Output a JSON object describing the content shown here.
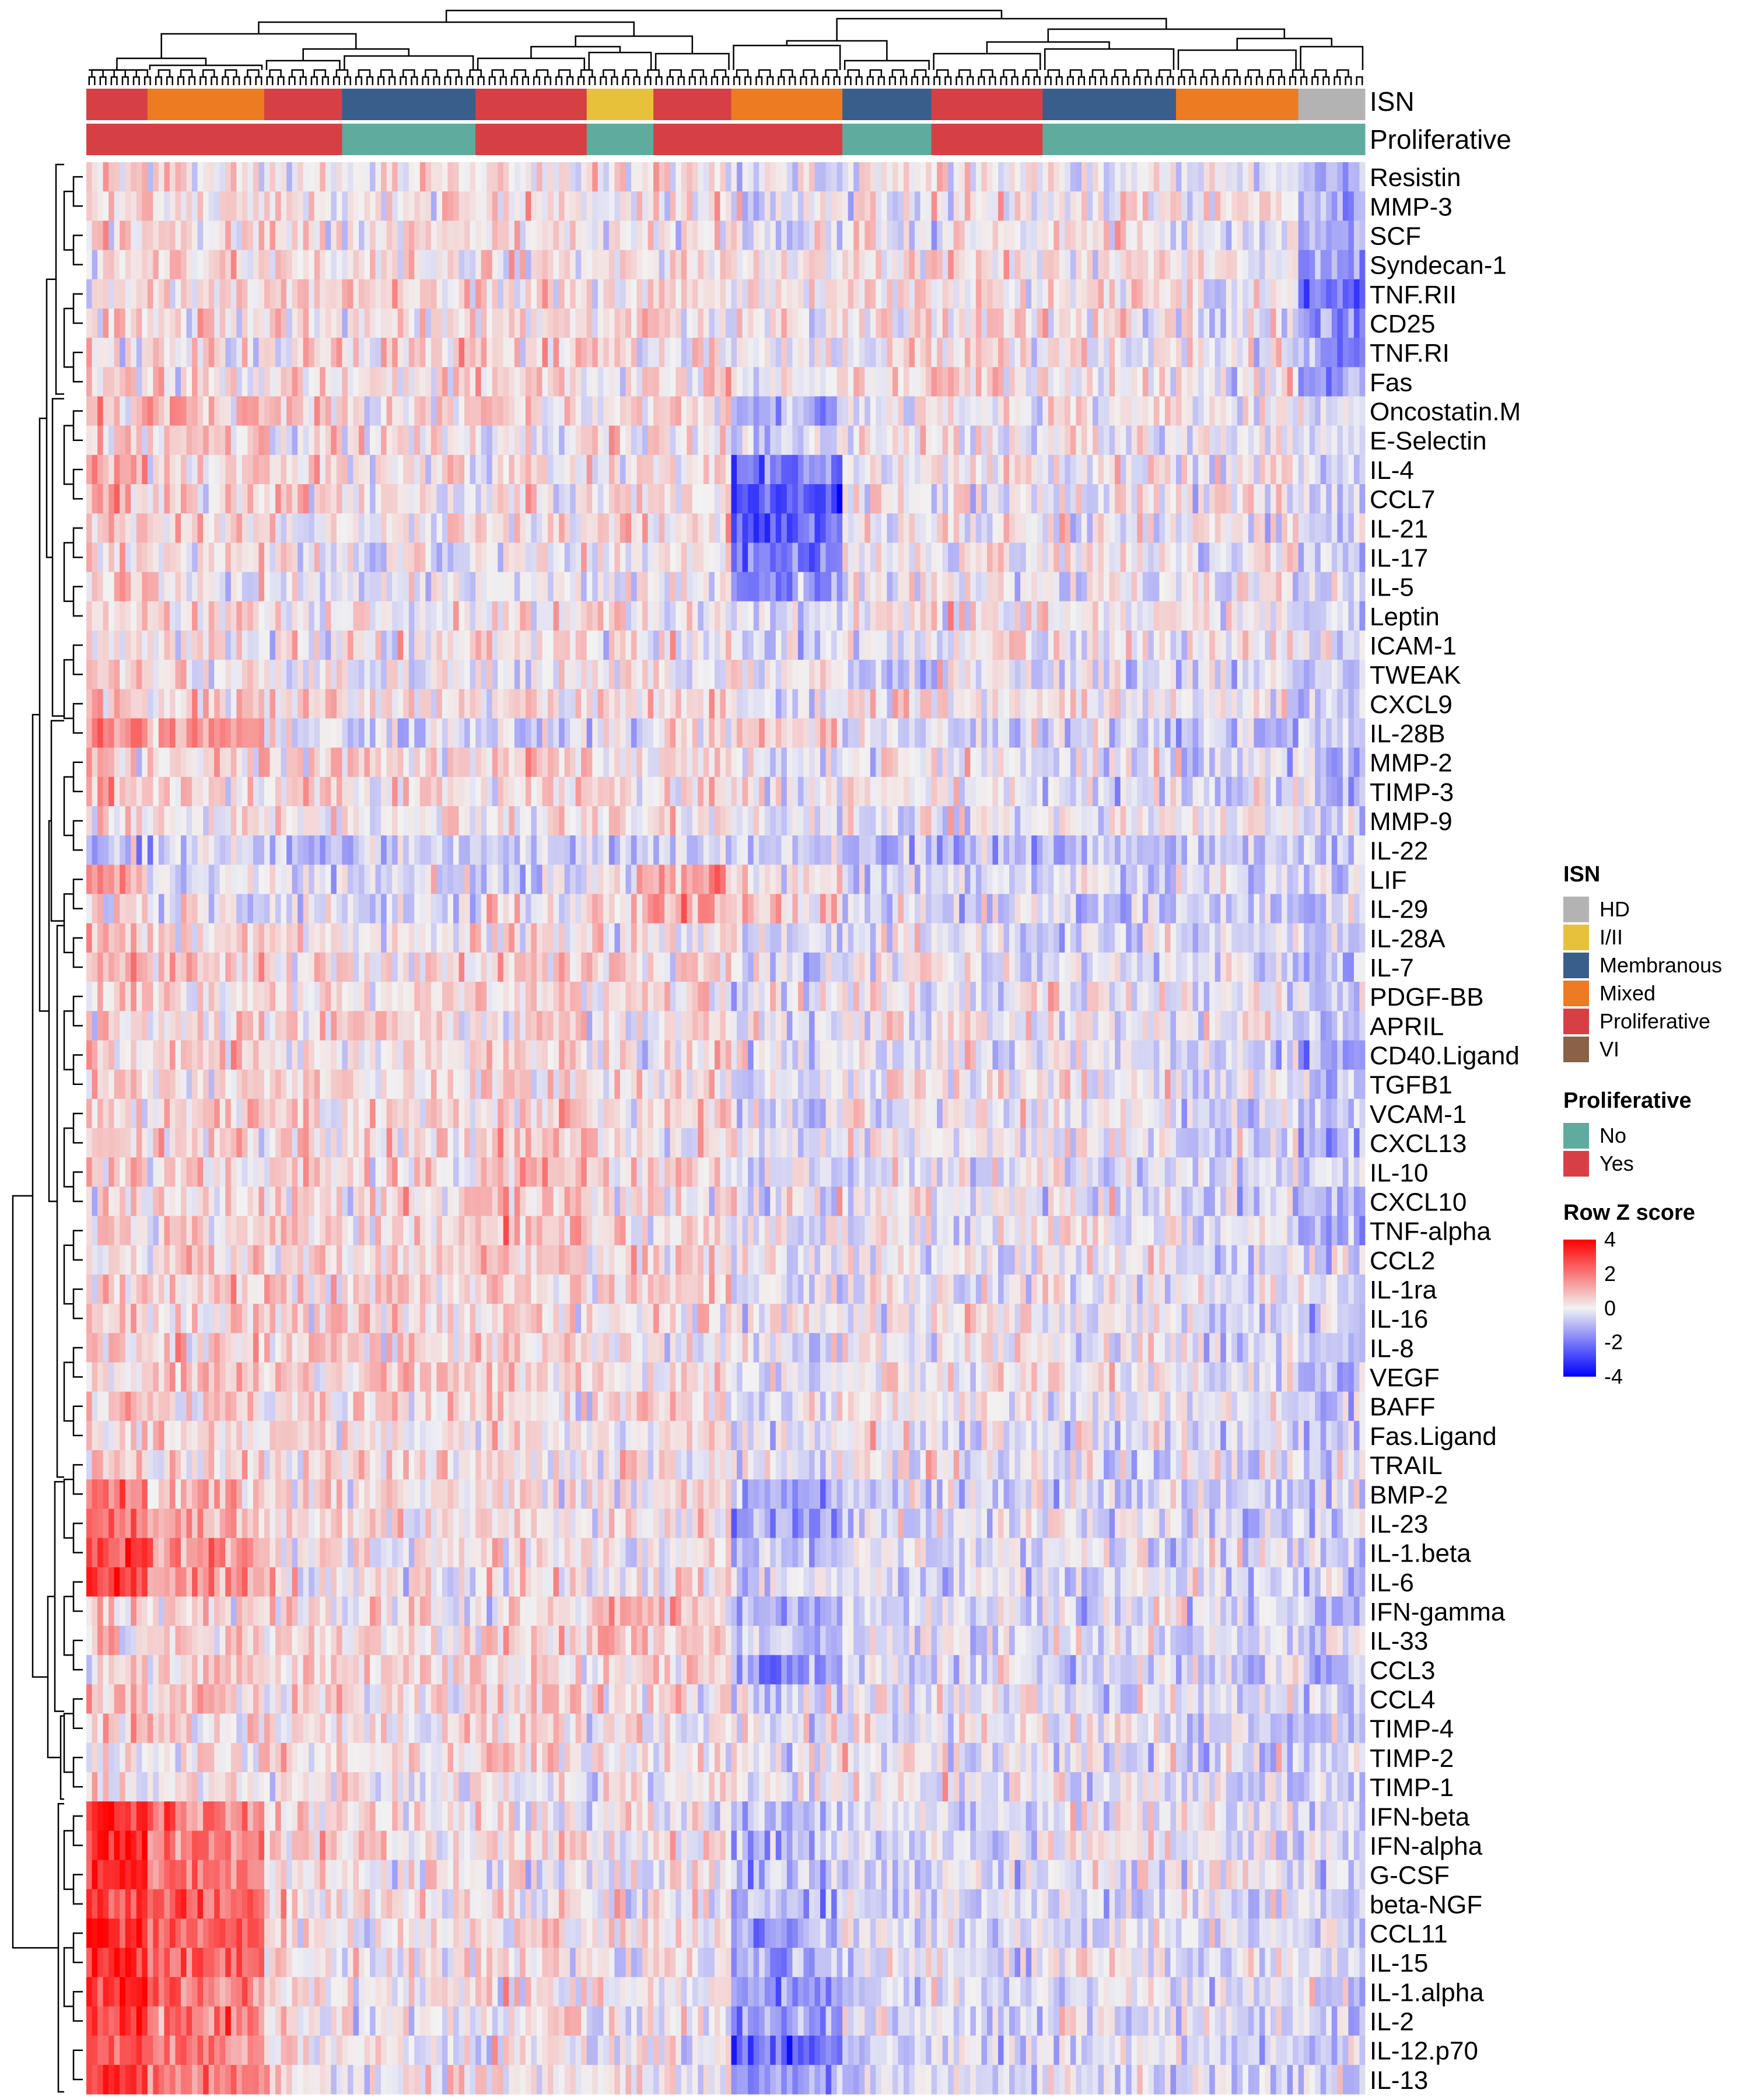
{
  "annotation_tracks": [
    {
      "id": "isn",
      "label": "ISN"
    },
    {
      "id": "proliferative",
      "label": "Proliferative"
    }
  ],
  "legends": {
    "isn": {
      "title": "ISN",
      "items": [
        {
          "label": "HD",
          "color": "#b3b3b3"
        },
        {
          "label": "I/II",
          "color": "#e8c13a"
        },
        {
          "label": "Membranous",
          "color": "#3a5e8c"
        },
        {
          "label": "Mixed",
          "color": "#ec7b22"
        },
        {
          "label": "Proliferative",
          "color": "#d64045"
        },
        {
          "label": "VI",
          "color": "#8b6148"
        }
      ]
    },
    "proliferative": {
      "title": "Proliferative",
      "items": [
        {
          "label": "No",
          "color": "#5fab9e"
        },
        {
          "label": "Yes",
          "color": "#d64045"
        }
      ]
    },
    "zscore": {
      "title": "Row Z score",
      "ticks": [
        "4",
        "2",
        "0",
        "-2",
        "-4"
      ],
      "colors": {
        "low": "#0000ff",
        "mid": "#f2f2f2",
        "high": "#ff0000"
      }
    }
  },
  "chart_data": {
    "type": "heatmap",
    "value": "Row Z score",
    "zlim": [
      -4,
      4
    ],
    "row_dendrogram": true,
    "column_dendrogram": true,
    "n_columns": 230,
    "rows": [
      "Resistin",
      "MMP-3",
      "SCF",
      "Syndecan-1",
      "TNF.RII",
      "CD25",
      "TNF.RI",
      "Fas",
      "Oncostatin.M",
      "E-Selectin",
      "IL-4",
      "CCL7",
      "IL-21",
      "IL-17",
      "IL-5",
      "Leptin",
      "ICAM-1",
      "TWEAK",
      "CXCL9",
      "IL-28B",
      "MMP-2",
      "TIMP-3",
      "MMP-9",
      "IL-22",
      "LIF",
      "IL-29",
      "IL-28A",
      "IL-7",
      "PDGF-BB",
      "APRIL",
      "CD40.Ligand",
      "TGFB1",
      "VCAM-1",
      "CXCL13",
      "IL-10",
      "CXCL10",
      "TNF-alpha",
      "CCL2",
      "IL-1ra",
      "IL-16",
      "IL-8",
      "VEGF",
      "BAFF",
      "Fas.Ligand",
      "TRAIL",
      "BMP-2",
      "IL-23",
      "IL-1.beta",
      "IL-6",
      "IFN-gamma",
      "IL-33",
      "CCL3",
      "CCL4",
      "TIMP-4",
      "TIMP-2",
      "TIMP-1",
      "IFN-beta",
      "IFN-alpha",
      "G-CSF",
      "beta-NGF",
      "CCL11",
      "IL-15",
      "IL-1.alpha",
      "IL-2",
      "IL-12.p70",
      "IL-13"
    ],
    "column_segments": [
      {
        "from": 0,
        "to": 11,
        "isn": "Proliferative",
        "proliferative": "Yes",
        "mean_z": [
          0.4,
          0.2,
          0.3,
          0.1,
          0.3,
          0.4,
          0.3,
          0.3,
          1.0,
          0.6,
          1.3,
          0.9,
          0.8,
          0.5,
          0.6,
          0.4,
          0.3,
          0.6,
          0.7,
          1.8,
          0.6,
          0.8,
          0.3,
          -0.8,
          1.0,
          0.6,
          0.9,
          1.4,
          0.6,
          0.5,
          0.6,
          0.6,
          0.6,
          0.5,
          0.6,
          0.5,
          0.6,
          0.5,
          0.5,
          0.5,
          0.6,
          0.6,
          0.5,
          0.5,
          0.5,
          2.0,
          2.0,
          3.0,
          3.0,
          0.8,
          0.7,
          0.6,
          0.7,
          0.4,
          0.4,
          0.3,
          3.0,
          3.2,
          3.2,
          3.2,
          3.4,
          3.3,
          3.2,
          3.3,
          2.6,
          3.0
        ]
      },
      {
        "from": 11,
        "to": 32,
        "isn": "Mixed",
        "proliferative": "Yes",
        "mean_z": [
          0.2,
          0.3,
          0.4,
          0.3,
          0.4,
          0.5,
          0.4,
          0.4,
          0.8,
          0.5,
          0.6,
          0.6,
          0.5,
          0.3,
          0.2,
          0.3,
          0.3,
          0.3,
          0.5,
          1.2,
          0.5,
          0.7,
          0.3,
          -0.8,
          -0.2,
          -0.2,
          0.5,
          0.8,
          0.5,
          0.4,
          0.5,
          0.4,
          0.5,
          0.4,
          0.5,
          0.4,
          0.5,
          0.6,
          0.6,
          0.5,
          0.6,
          0.7,
          0.5,
          0.4,
          0.4,
          1.0,
          1.0,
          1.4,
          1.6,
          0.6,
          0.6,
          0.7,
          0.6,
          0.5,
          0.4,
          0.3,
          1.8,
          2.0,
          2.0,
          2.2,
          2.4,
          2.2,
          2.0,
          2.0,
          1.6,
          1.8
        ]
      },
      {
        "from": 32,
        "to": 46,
        "isn": "Proliferative",
        "proliferative": "Yes",
        "mean_z": [
          0.0,
          0.3,
          0.2,
          0.3,
          0.5,
          0.4,
          0.5,
          0.4,
          0.6,
          0.2,
          0.3,
          0.3,
          0.1,
          0.1,
          -0.3,
          0.2,
          0.2,
          -0.1,
          0.4,
          -0.3,
          0.4,
          0.6,
          0.2,
          -0.8,
          -0.3,
          -0.3,
          0.4,
          0.5,
          0.4,
          0.4,
          0.4,
          0.3,
          0.4,
          0.5,
          0.5,
          0.4,
          0.5,
          0.6,
          0.5,
          0.5,
          0.6,
          0.7,
          0.3,
          0.3,
          0.3,
          0.4,
          0.3,
          0.4,
          0.4,
          0.4,
          0.3,
          0.5,
          0.4,
          0.4,
          0.3,
          0.2,
          0.5,
          0.6,
          0.5,
          0.5,
          0.6,
          0.5,
          0.4,
          0.4,
          0.3,
          0.4
        ]
      },
      {
        "from": 46,
        "to": 70,
        "isn": "Membranous",
        "proliferative": "No",
        "mean_z": [
          0.1,
          0.4,
          0.3,
          0.4,
          0.6,
          0.4,
          0.5,
          0.4,
          0.4,
          0.1,
          0.2,
          0.2,
          0.1,
          0.0,
          -0.2,
          0.2,
          0.1,
          -0.1,
          0.3,
          -0.5,
          0.3,
          0.4,
          0.1,
          -0.8,
          -0.4,
          -0.4,
          0.3,
          0.4,
          0.4,
          0.4,
          0.4,
          0.3,
          0.4,
          0.3,
          0.3,
          0.3,
          0.3,
          0.4,
          0.4,
          0.4,
          0.5,
          0.5,
          0.2,
          0.2,
          0.2,
          0.3,
          0.2,
          0.2,
          0.2,
          0.3,
          0.2,
          0.4,
          0.3,
          0.3,
          0.2,
          0.2,
          0.2,
          0.2,
          0.2,
          0.2,
          0.2,
          0.1,
          0.1,
          0.1,
          0.1,
          0.1
        ]
      },
      {
        "from": 70,
        "to": 90,
        "isn": "Proliferative",
        "proliferative": "Yes",
        "mean_z": [
          0.2,
          0.3,
          0.3,
          0.4,
          0.5,
          0.4,
          0.5,
          0.5,
          0.3,
          0.2,
          0.1,
          0.2,
          0.1,
          0.1,
          -0.1,
          0.2,
          0.2,
          0.0,
          0.4,
          -0.4,
          0.4,
          0.3,
          0.2,
          -0.7,
          -0.3,
          0.2,
          0.4,
          0.5,
          0.5,
          0.5,
          0.5,
          0.4,
          0.6,
          0.8,
          1.0,
          1.0,
          1.0,
          1.0,
          0.7,
          0.6,
          0.7,
          0.7,
          0.3,
          0.3,
          0.3,
          0.3,
          0.3,
          0.3,
          0.3,
          0.4,
          0.4,
          0.5,
          0.5,
          0.3,
          0.3,
          0.2,
          0.2,
          0.3,
          0.2,
          0.2,
          0.3,
          0.2,
          0.2,
          0.2,
          0.2,
          0.2
        ]
      },
      {
        "from": 90,
        "to": 102,
        "isn": "I/II",
        "proliferative": "No",
        "mean_z": [
          0.1,
          0.2,
          0.2,
          0.3,
          0.4,
          0.4,
          0.3,
          0.3,
          0.4,
          0.1,
          0.2,
          0.3,
          0.3,
          0.1,
          -0.2,
          0.2,
          0.1,
          -0.2,
          0.3,
          -0.5,
          0.2,
          0.4,
          0.1,
          -0.6,
          0.4,
          0.6,
          0.2,
          0.2,
          0.2,
          0.2,
          0.2,
          0.2,
          0.3,
          0.3,
          0.3,
          0.3,
          0.4,
          0.4,
          0.3,
          0.3,
          0.3,
          0.4,
          0.2,
          0.2,
          0.2,
          0.2,
          0.2,
          0.1,
          0.1,
          1.0,
          1.2,
          0.3,
          0.2,
          0.2,
          0.2,
          0.1,
          0.1,
          0.1,
          0.1,
          0.1,
          0.1,
          0.0,
          0.0,
          0.0,
          0.0,
          0.0
        ]
      },
      {
        "from": 102,
        "to": 116,
        "isn": "Proliferative",
        "proliferative": "Yes",
        "mean_z": [
          0.2,
          0.2,
          0.3,
          0.3,
          0.4,
          0.3,
          0.4,
          0.4,
          0.6,
          0.2,
          0.4,
          0.4,
          0.2,
          0.1,
          -0.1,
          0.2,
          0.1,
          -0.1,
          0.3,
          0.4,
          0.3,
          0.3,
          0.1,
          -0.6,
          1.6,
          1.8,
          0.3,
          0.4,
          0.3,
          0.3,
          0.3,
          0.3,
          0.4,
          0.3,
          0.4,
          0.4,
          0.4,
          0.4,
          0.3,
          0.3,
          0.4,
          0.3,
          0.2,
          0.2,
          0.2,
          0.4,
          0.4,
          0.3,
          0.3,
          0.6,
          0.5,
          0.3,
          0.3,
          0.2,
          0.2,
          0.1,
          0.1,
          0.1,
          0.1,
          0.1,
          0.1,
          0.1,
          0.0,
          0.0,
          0.0,
          0.0
        ]
      },
      {
        "from": 116,
        "to": 136,
        "isn": "Mixed",
        "proliferative": "Yes",
        "mean_z": [
          -0.1,
          0.0,
          -0.2,
          0.0,
          0.1,
          0.0,
          0.0,
          0.0,
          -1.2,
          -0.6,
          -2.2,
          -2.4,
          -2.4,
          -1.6,
          -1.4,
          -0.3,
          -0.2,
          0.1,
          0.0,
          0.6,
          0.0,
          0.1,
          -0.1,
          -0.7,
          0.4,
          0.6,
          -0.3,
          -0.3,
          -0.3,
          -0.3,
          -0.3,
          -0.2,
          -0.2,
          -0.2,
          -0.2,
          -0.1,
          -0.2,
          -0.2,
          -0.3,
          -0.2,
          -0.2,
          -0.2,
          -0.2,
          -0.2,
          -0.2,
          -1.0,
          -1.2,
          -0.6,
          -0.6,
          -0.8,
          -0.8,
          -1.6,
          -0.4,
          -0.2,
          -0.1,
          -0.1,
          -0.8,
          -1.0,
          -1.0,
          -1.0,
          -1.2,
          -1.4,
          -1.6,
          -1.6,
          -2.4,
          -1.6
        ]
      },
      {
        "from": 136,
        "to": 152,
        "isn": "Membranous",
        "proliferative": "No",
        "mean_z": [
          0.2,
          0.2,
          0.2,
          0.3,
          0.3,
          0.3,
          0.3,
          0.3,
          0.2,
          0.2,
          0.1,
          0.1,
          0.0,
          0.0,
          -0.1,
          0.1,
          0.0,
          -0.4,
          0.2,
          -0.6,
          0.1,
          0.1,
          0.0,
          -0.8,
          -0.4,
          -0.5,
          -0.1,
          0.0,
          0.1,
          0.1,
          0.1,
          0.1,
          0.1,
          0.0,
          -0.1,
          0.0,
          0.0,
          0.0,
          0.0,
          0.0,
          0.0,
          0.1,
          0.0,
          0.1,
          0.1,
          -0.3,
          -0.3,
          -0.2,
          -0.2,
          -0.4,
          -0.3,
          -0.3,
          -0.1,
          0.0,
          0.0,
          0.0,
          -0.3,
          -0.4,
          -0.4,
          -0.4,
          -0.4,
          -0.4,
          -0.4,
          -0.4,
          -0.5,
          -0.4
        ]
      },
      {
        "from": 152,
        "to": 172,
        "isn": "Proliferative",
        "proliferative": "Yes",
        "mean_z": [
          0.1,
          0.2,
          0.2,
          0.3,
          0.4,
          0.3,
          0.3,
          0.3,
          0.3,
          0.2,
          0.1,
          0.2,
          0.1,
          0.0,
          -0.1,
          0.2,
          0.1,
          0.0,
          0.2,
          -0.5,
          0.0,
          0.0,
          0.1,
          -0.8,
          -0.4,
          -0.5,
          -0.3,
          -0.2,
          0.0,
          0.0,
          -0.1,
          0.0,
          0.1,
          0.0,
          -0.3,
          -0.2,
          -0.1,
          -0.1,
          -0.1,
          0.0,
          0.0,
          0.1,
          0.0,
          0.0,
          0.0,
          -0.4,
          -0.4,
          -0.3,
          -0.3,
          -0.3,
          -0.3,
          -0.3,
          -0.1,
          0.0,
          0.0,
          0.0,
          -0.2,
          -0.2,
          -0.2,
          -0.2,
          -0.2,
          -0.3,
          -0.3,
          -0.3,
          -0.3,
          -0.3
        ]
      },
      {
        "from": 172,
        "to": 196,
        "isn": "Membranous",
        "proliferative": "No",
        "mean_z": [
          0.1,
          0.2,
          0.2,
          0.3,
          0.2,
          0.2,
          0.2,
          0.2,
          0.2,
          0.1,
          0.0,
          0.1,
          0.0,
          0.0,
          -0.1,
          0.1,
          0.0,
          -0.3,
          0.1,
          -0.6,
          -0.2,
          -0.3,
          0.0,
          -0.8,
          -0.4,
          -0.5,
          -0.4,
          -0.2,
          0.0,
          0.0,
          -0.1,
          -0.1,
          0.0,
          -0.1,
          -0.2,
          -0.2,
          -0.1,
          -0.1,
          -0.1,
          -0.1,
          -0.1,
          0.0,
          -0.1,
          -0.1,
          -0.1,
          -0.3,
          -0.3,
          -0.3,
          -0.3,
          -0.3,
          -0.2,
          -0.6,
          -0.2,
          -0.1,
          -0.1,
          -0.1,
          -0.1,
          -0.1,
          -0.1,
          -0.1,
          -0.2,
          -0.2,
          -0.2,
          -0.2,
          -0.2,
          -0.2
        ]
      },
      {
        "from": 196,
        "to": 218,
        "isn": "Mixed",
        "proliferative": "No",
        "mean_z": [
          0.0,
          0.0,
          0.0,
          0.0,
          -0.1,
          -0.2,
          -0.1,
          -0.1,
          0.0,
          0.0,
          0.0,
          0.0,
          0.0,
          -0.1,
          -0.2,
          0.0,
          -0.1,
          -0.4,
          -0.2,
          -0.6,
          -0.2,
          -0.3,
          -0.1,
          -0.8,
          -0.4,
          -0.5,
          -0.4,
          -0.3,
          -0.2,
          -0.2,
          -0.3,
          -0.2,
          -0.2,
          -0.3,
          -0.3,
          -0.3,
          -0.2,
          -0.2,
          -0.2,
          -0.2,
          -0.3,
          -0.2,
          -0.2,
          -0.2,
          -0.2,
          -0.4,
          -0.4,
          -0.4,
          -0.4,
          -0.4,
          -0.3,
          -0.3,
          -0.3,
          -0.4,
          -0.4,
          -0.4,
          -0.2,
          -0.2,
          -0.2,
          -0.2,
          -0.2,
          -0.3,
          -0.3,
          -0.3,
          -0.3,
          -0.3
        ]
      },
      {
        "from": 218,
        "to": 230,
        "isn": "HD",
        "proliferative": "No",
        "mean_z": [
          -1.2,
          -1.0,
          -1.0,
          -1.4,
          -2.2,
          -1.6,
          -1.4,
          -1.4,
          -0.4,
          -0.4,
          -0.4,
          -0.4,
          -0.4,
          -0.8,
          -0.6,
          -0.4,
          -0.4,
          -0.6,
          -0.6,
          -0.6,
          -0.6,
          -0.6,
          -0.4,
          -0.8,
          -0.4,
          -0.5,
          -0.6,
          -0.6,
          -0.6,
          -0.6,
          -1.4,
          -0.8,
          -0.8,
          -1.2,
          -0.6,
          -0.8,
          -0.8,
          -0.6,
          -0.6,
          -0.6,
          -0.8,
          -0.6,
          -0.6,
          -0.6,
          -0.6,
          -0.6,
          -0.6,
          -0.6,
          -0.6,
          -0.6,
          -0.5,
          -0.6,
          -0.6,
          -0.6,
          -0.6,
          -0.6,
          -0.5,
          -0.5,
          -0.5,
          -0.5,
          -0.5,
          -0.5,
          -0.5,
          -0.5,
          -0.5,
          -0.5
        ]
      }
    ]
  }
}
